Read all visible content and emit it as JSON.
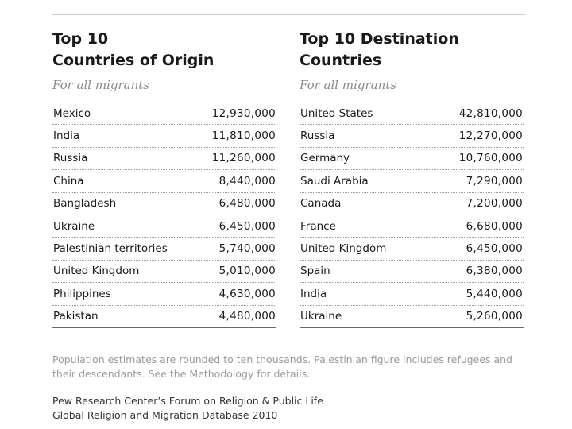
{
  "origin": {
    "title": "Top 10\nCountries of Origin",
    "subtitle": "For all migrants",
    "rows": [
      {
        "country": "Mexico",
        "value": "12,930,000"
      },
      {
        "country": "India",
        "value": "11,810,000"
      },
      {
        "country": "Russia",
        "value": "11,260,000"
      },
      {
        "country": "China",
        "value": "8,440,000"
      },
      {
        "country": "Bangladesh",
        "value": "6,480,000"
      },
      {
        "country": "Ukraine",
        "value": "6,450,000"
      },
      {
        "country": "Palestinian territories",
        "value": "5,740,000"
      },
      {
        "country": "United Kingdom",
        "value": "5,010,000"
      },
      {
        "country": "Philippines",
        "value": "4,630,000"
      },
      {
        "country": "Pakistan",
        "value": "4,480,000"
      }
    ]
  },
  "destination": {
    "title": "Top 10 Destination\nCountries",
    "subtitle": "For all migrants",
    "rows": [
      {
        "country": "United States",
        "value": "42,810,000"
      },
      {
        "country": "Russia",
        "value": "12,270,000"
      },
      {
        "country": "Germany",
        "value": "10,760,000"
      },
      {
        "country": "Saudi Arabia",
        "value": "7,290,000"
      },
      {
        "country": "Canada",
        "value": "7,200,000"
      },
      {
        "country": "France",
        "value": "6,680,000"
      },
      {
        "country": "United Kingdom",
        "value": "6,450,000"
      },
      {
        "country": "Spain",
        "value": "6,380,000"
      },
      {
        "country": "India",
        "value": "5,440,000"
      },
      {
        "country": "Ukraine",
        "value": "5,260,000"
      }
    ]
  },
  "note": "Population estimates are rounded to ten thousands. Palestinian figure includes refugees and their descendants. See the Methodology for details.",
  "source": {
    "line1": "Pew Research Center’s Forum on Religion & Public Life",
    "line2": "Global Religion and Migration Database 2010"
  }
}
